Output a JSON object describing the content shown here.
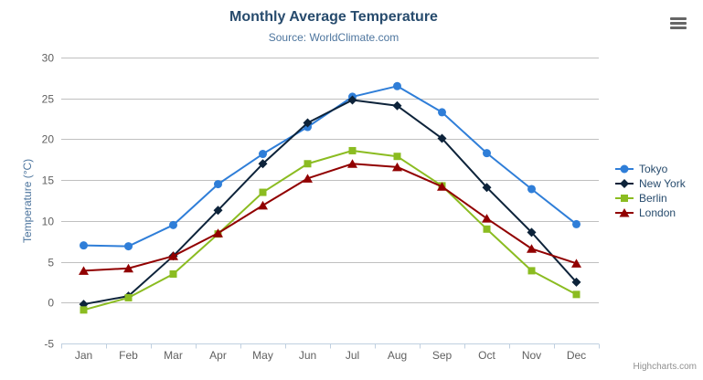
{
  "chart_data": {
    "type": "line",
    "title": "Monthly Average Temperature",
    "subtitle": "Source: WorldClimate.com",
    "categories": [
      "Jan",
      "Feb",
      "Mar",
      "Apr",
      "May",
      "Jun",
      "Jul",
      "Aug",
      "Sep",
      "Oct",
      "Nov",
      "Dec"
    ],
    "series": [
      {
        "name": "Tokyo",
        "color": "#2f7ed8",
        "marker": "circle",
        "values": [
          7.0,
          6.9,
          9.5,
          14.5,
          18.2,
          21.5,
          25.2,
          26.5,
          23.3,
          18.3,
          13.9,
          9.6
        ]
      },
      {
        "name": "New York",
        "color": "#0d233a",
        "marker": "diamond",
        "values": [
          -0.2,
          0.8,
          5.7,
          11.3,
          17.0,
          22.0,
          24.8,
          24.1,
          20.1,
          14.1,
          8.6,
          2.5
        ]
      },
      {
        "name": "Berlin",
        "color": "#8bbc21",
        "marker": "square",
        "values": [
          -0.9,
          0.6,
          3.5,
          8.4,
          13.5,
          17.0,
          18.6,
          17.9,
          14.3,
          9.0,
          3.9,
          1.0
        ]
      },
      {
        "name": "London",
        "color": "#910000",
        "marker": "triangle",
        "values": [
          3.9,
          4.2,
          5.7,
          8.5,
          11.9,
          15.2,
          17.0,
          16.6,
          14.2,
          10.3,
          6.6,
          4.8
        ]
      }
    ],
    "xlabel": "",
    "ylabel": "Temperature (°C)",
    "ylim": [
      -5,
      30
    ],
    "ytick_step": 5,
    "yticks": [
      -5,
      0,
      5,
      10,
      15,
      20,
      25,
      30
    ],
    "grid": true,
    "legend_position": "right"
  },
  "credits": {
    "label": "Highcharts.com"
  },
  "colors": {
    "gridline": "#c0c0c0",
    "axis_line": "#c0d0e0",
    "tick_label": "#606060",
    "title": "#274b6d",
    "subtitle": "#4d759e",
    "axis_title": "#4d759e",
    "legend_text": "#274b6d",
    "credits": "#909090",
    "export_icon": "#666666"
  }
}
